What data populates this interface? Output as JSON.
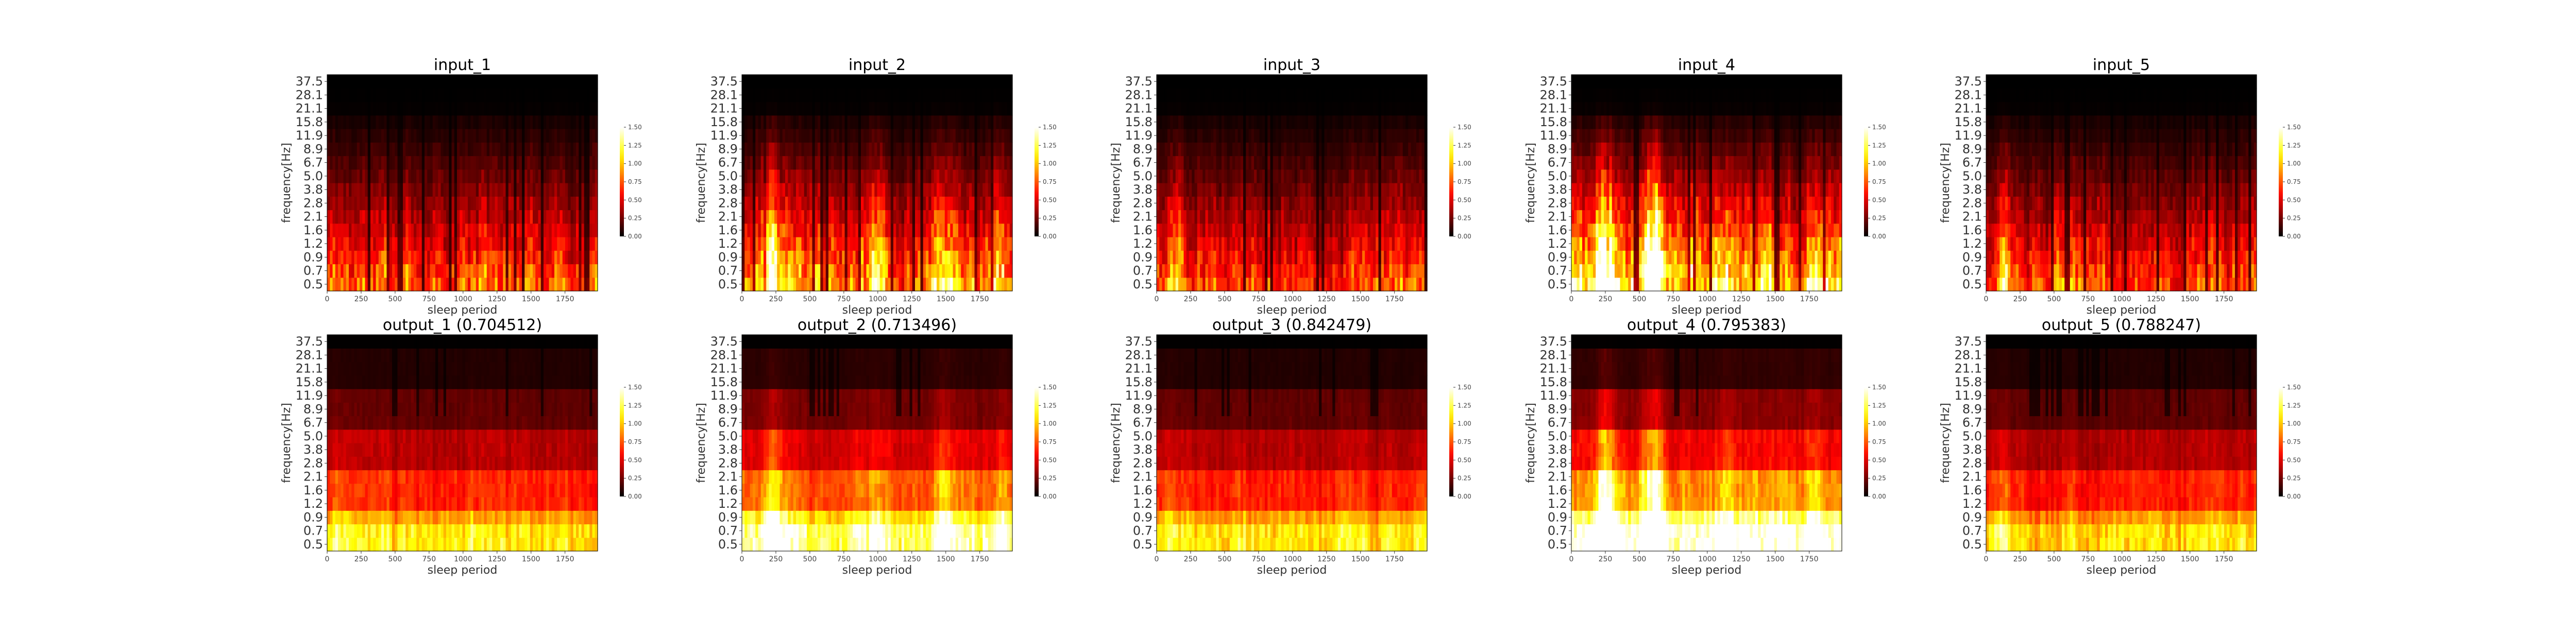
{
  "figure_type": "spectrogram grid",
  "chart_data": [
    {
      "type": "heatmap",
      "title": "input_1",
      "xlabel": "sleep period",
      "ylabel": "frequency[Hz]",
      "xlim": [
        0,
        1990
      ],
      "x_ticks": [
        "0",
        "250",
        "500",
        "750",
        "1000",
        "1250",
        "1500",
        "1750"
      ],
      "y_ticks": [
        "0.5",
        "0.7",
        "0.9",
        "1.2",
        "1.6",
        "2.1",
        "2.8",
        "3.8",
        "5.0",
        "6.7",
        "8.9",
        "11.9",
        "15.8",
        "21.1",
        "28.1",
        "37.5"
      ],
      "colorbar": {
        "min": 0.0,
        "max": 1.5,
        "ticks": [
          "0.00",
          "0.25",
          "0.50",
          "0.75",
          "1.00",
          "1.25",
          "1.50"
        ],
        "colormap": "hot"
      },
      "intensity": 0.85,
      "kind": "input",
      "hotspots": [],
      "seed": 11
    },
    {
      "type": "heatmap",
      "title": "input_2",
      "xlabel": "sleep period",
      "ylabel": "frequency[Hz]",
      "xlim": [
        0,
        1990
      ],
      "x_ticks": [
        "0",
        "250",
        "500",
        "750",
        "1000",
        "1250",
        "1500",
        "1750"
      ],
      "y_ticks": [
        "0.5",
        "0.7",
        "0.9",
        "1.2",
        "1.6",
        "2.1",
        "2.8",
        "3.8",
        "5.0",
        "6.7",
        "8.9",
        "11.9",
        "15.8",
        "21.1",
        "28.1",
        "37.5"
      ],
      "colorbar": {
        "min": 0.0,
        "max": 1.5,
        "ticks": [
          "0.00",
          "0.25",
          "0.50",
          "0.75",
          "1.00",
          "1.25",
          "1.50"
        ],
        "colormap": "hot"
      },
      "intensity": 1.0,
      "kind": "input",
      "hotspots": [
        [
          220,
          1.6
        ],
        [
          1000,
          1.3
        ],
        [
          1480,
          1.4
        ],
        [
          1880,
          1.2
        ]
      ],
      "seed": 23
    },
    {
      "type": "heatmap",
      "title": "input_3",
      "xlabel": "sleep period",
      "ylabel": "frequency[Hz]",
      "xlim": [
        0,
        1990
      ],
      "x_ticks": [
        "0",
        "250",
        "500",
        "750",
        "1000",
        "1250",
        "1500",
        "1750"
      ],
      "y_ticks": [
        "0.5",
        "0.7",
        "0.9",
        "1.2",
        "1.6",
        "2.1",
        "2.8",
        "3.8",
        "5.0",
        "6.7",
        "8.9",
        "11.9",
        "15.8",
        "21.1",
        "28.1",
        "37.5"
      ],
      "colorbar": {
        "min": 0.0,
        "max": 1.5,
        "ticks": [
          "0.00",
          "0.25",
          "0.50",
          "0.75",
          "1.00",
          "1.25",
          "1.50"
        ],
        "colormap": "hot"
      },
      "intensity": 0.8,
      "kind": "input",
      "hotspots": [
        [
          120,
          1.4
        ]
      ],
      "seed": 37
    },
    {
      "type": "heatmap",
      "title": "input_4",
      "xlabel": "sleep period",
      "ylabel": "frequency[Hz]",
      "xlim": [
        0,
        1990
      ],
      "x_ticks": [
        "0",
        "250",
        "500",
        "750",
        "1000",
        "1250",
        "1500",
        "1750"
      ],
      "y_ticks": [
        "0.5",
        "0.7",
        "0.9",
        "1.2",
        "1.6",
        "2.1",
        "2.8",
        "3.8",
        "5.0",
        "6.7",
        "8.9",
        "11.9",
        "15.8",
        "21.1",
        "28.1",
        "37.5"
      ],
      "colorbar": {
        "min": 0.0,
        "max": 1.5,
        "ticks": [
          "0.00",
          "0.25",
          "0.50",
          "0.75",
          "1.00",
          "1.25",
          "1.50"
        ],
        "colormap": "hot"
      },
      "intensity": 1.15,
      "kind": "input",
      "hotspots": [
        [
          250,
          2.0
        ],
        [
          600,
          2.0
        ],
        [
          1150,
          1.2
        ],
        [
          1800,
          1.3
        ]
      ],
      "seed": 41
    },
    {
      "type": "heatmap",
      "title": "input_5",
      "xlabel": "sleep period",
      "ylabel": "frequency[Hz]",
      "xlim": [
        0,
        1990
      ],
      "x_ticks": [
        "0",
        "250",
        "500",
        "750",
        "1000",
        "1250",
        "1500",
        "1750"
      ],
      "y_ticks": [
        "0.5",
        "0.7",
        "0.9",
        "1.2",
        "1.6",
        "2.1",
        "2.8",
        "3.8",
        "5.0",
        "6.7",
        "8.9",
        "11.9",
        "15.8",
        "21.1",
        "28.1",
        "37.5"
      ],
      "colorbar": {
        "min": 0.0,
        "max": 1.5,
        "ticks": [
          "0.00",
          "0.25",
          "0.50",
          "0.75",
          "1.00",
          "1.25",
          "1.50"
        ],
        "colormap": "hot"
      },
      "intensity": 0.85,
      "kind": "input",
      "hotspots": [
        [
          120,
          1.4
        ]
      ],
      "seed": 53
    },
    {
      "type": "heatmap",
      "title": "output_1 (0.704512)",
      "xlabel": "sleep period",
      "ylabel": "frequency[Hz]",
      "xlim": [
        0,
        1990
      ],
      "x_ticks": [
        "0",
        "250",
        "500",
        "750",
        "1000",
        "1250",
        "1500",
        "1750"
      ],
      "y_ticks": [
        "0.5",
        "0.7",
        "0.9",
        "1.2",
        "1.6",
        "2.1",
        "2.8",
        "3.8",
        "5.0",
        "6.7",
        "8.9",
        "11.9",
        "15.8",
        "21.1",
        "28.1",
        "37.5"
      ],
      "colorbar": {
        "min": 0.0,
        "max": 1.5,
        "ticks": [
          "0.00",
          "0.25",
          "0.50",
          "0.75",
          "1.00",
          "1.25",
          "1.50"
        ],
        "colormap": "hot"
      },
      "intensity": 0.85,
      "kind": "output",
      "hotspots": [
        [
          120,
          1.3
        ]
      ],
      "seed": 61
    },
    {
      "type": "heatmap",
      "title": "output_2 (0.713496)",
      "xlabel": "sleep period",
      "ylabel": "frequency[Hz]",
      "xlim": [
        0,
        1990
      ],
      "x_ticks": [
        "0",
        "250",
        "500",
        "750",
        "1000",
        "1250",
        "1500",
        "1750"
      ],
      "y_ticks": [
        "0.5",
        "0.7",
        "0.9",
        "1.2",
        "1.6",
        "2.1",
        "2.8",
        "3.8",
        "5.0",
        "6.7",
        "8.9",
        "11.9",
        "15.8",
        "21.1",
        "28.1",
        "37.5"
      ],
      "colorbar": {
        "min": 0.0,
        "max": 1.5,
        "ticks": [
          "0.00",
          "0.25",
          "0.50",
          "0.75",
          "1.00",
          "1.25",
          "1.50"
        ],
        "colormap": "hot"
      },
      "intensity": 1.05,
      "kind": "output",
      "hotspots": [
        [
          220,
          1.7
        ],
        [
          1000,
          1.3
        ],
        [
          1480,
          1.5
        ],
        [
          1880,
          1.3
        ]
      ],
      "seed": 71
    },
    {
      "type": "heatmap",
      "title": "output_3 (0.842479)",
      "xlabel": "sleep period",
      "ylabel": "frequency[Hz]",
      "xlim": [
        0,
        1990
      ],
      "x_ticks": [
        "0",
        "250",
        "500",
        "750",
        "1000",
        "1250",
        "1500",
        "1750"
      ],
      "y_ticks": [
        "0.5",
        "0.7",
        "0.9",
        "1.2",
        "1.6",
        "2.1",
        "2.8",
        "3.8",
        "5.0",
        "6.7",
        "8.9",
        "11.9",
        "15.8",
        "21.1",
        "28.1",
        "37.5"
      ],
      "colorbar": {
        "min": 0.0,
        "max": 1.5,
        "ticks": [
          "0.00",
          "0.25",
          "0.50",
          "0.75",
          "1.00",
          "1.25",
          "1.50"
        ],
        "colormap": "hot"
      },
      "intensity": 0.85,
      "kind": "output",
      "hotspots": [
        [
          120,
          1.3
        ]
      ],
      "seed": 83
    },
    {
      "type": "heatmap",
      "title": "output_4 (0.795383)",
      "xlabel": "sleep period",
      "ylabel": "frequency[Hz]",
      "xlim": [
        0,
        1990
      ],
      "x_ticks": [
        "0",
        "250",
        "500",
        "750",
        "1000",
        "1250",
        "1500",
        "1750"
      ],
      "y_ticks": [
        "0.5",
        "0.7",
        "0.9",
        "1.2",
        "1.6",
        "2.1",
        "2.8",
        "3.8",
        "5.0",
        "6.7",
        "8.9",
        "11.9",
        "15.8",
        "21.1",
        "28.1",
        "37.5"
      ],
      "colorbar": {
        "min": 0.0,
        "max": 1.5,
        "ticks": [
          "0.00",
          "0.25",
          "0.50",
          "0.75",
          "1.00",
          "1.25",
          "1.50"
        ],
        "colormap": "hot"
      },
      "intensity": 1.2,
      "kind": "output",
      "hotspots": [
        [
          250,
          2.2
        ],
        [
          600,
          2.2
        ],
        [
          1150,
          1.2
        ],
        [
          1800,
          1.4
        ]
      ],
      "seed": 97
    },
    {
      "type": "heatmap",
      "title": "output_5 (0.788247)",
      "xlabel": "sleep period",
      "ylabel": "frequency[Hz]",
      "xlim": [
        0,
        1990
      ],
      "x_ticks": [
        "0",
        "250",
        "500",
        "750",
        "1000",
        "1250",
        "1500",
        "1750"
      ],
      "y_ticks": [
        "0.5",
        "0.7",
        "0.9",
        "1.2",
        "1.6",
        "2.1",
        "2.8",
        "3.8",
        "5.0",
        "6.7",
        "8.9",
        "11.9",
        "15.8",
        "21.1",
        "28.1",
        "37.5"
      ],
      "colorbar": {
        "min": 0.0,
        "max": 1.5,
        "ticks": [
          "0.00",
          "0.25",
          "0.50",
          "0.75",
          "1.00",
          "1.25",
          "1.50"
        ],
        "colormap": "hot"
      },
      "intensity": 0.85,
      "kind": "output",
      "hotspots": [
        [
          120,
          1.3
        ]
      ],
      "seed": 101
    }
  ]
}
